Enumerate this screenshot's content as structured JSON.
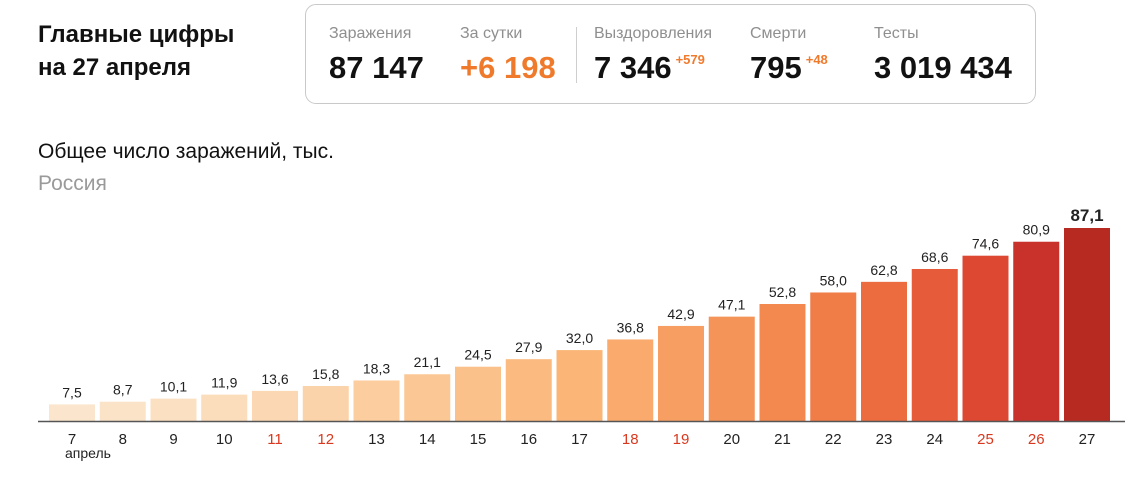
{
  "headline": {
    "line1": "Главные цифры",
    "line2": "на 27 апреля"
  },
  "stats": {
    "infections": {
      "label": "Заражения",
      "value": "87 147"
    },
    "daily": {
      "label": "За сутки",
      "value": "+6 198"
    },
    "recoveries": {
      "label": "Выздоровления",
      "value": "7 346",
      "delta": "+579"
    },
    "deaths": {
      "label": "Смерти",
      "value": "795",
      "delta": "+48"
    },
    "tests": {
      "label": "Тесты",
      "value": "3 019 434"
    }
  },
  "colors": {
    "accent": "#f07a2c",
    "holiday": "#d9381e"
  },
  "chart_data": {
    "type": "bar",
    "title": "Общее число заражений, тыс.",
    "subtitle": "Россия",
    "month_label": "апрель",
    "categories": [
      "7",
      "8",
      "9",
      "10",
      "11",
      "12",
      "13",
      "14",
      "15",
      "16",
      "17",
      "18",
      "19",
      "20",
      "21",
      "22",
      "23",
      "24",
      "25",
      "26",
      "27"
    ],
    "values": [
      7.5,
      8.7,
      10.1,
      11.9,
      13.6,
      15.8,
      18.3,
      21.1,
      24.5,
      27.9,
      32.0,
      36.8,
      42.9,
      47.1,
      52.8,
      58.0,
      62.8,
      68.6,
      74.6,
      80.9,
      87.1
    ],
    "value_labels": [
      "7,5",
      "8,7",
      "10,1",
      "11,9",
      "13,6",
      "15,8",
      "18,3",
      "21,1",
      "24,5",
      "27,9",
      "32,0",
      "36,8",
      "42,9",
      "47,1",
      "52,8",
      "58,0",
      "62,8",
      "68,6",
      "74,6",
      "80,9",
      "87,1"
    ],
    "weekend_categories": [
      "11",
      "12",
      "18",
      "19",
      "25",
      "26"
    ],
    "bar_colors": [
      "#fbe6cd",
      "#fbe3c8",
      "#fbe0c2",
      "#fbdcbb",
      "#fbd8b3",
      "#fbd3aa",
      "#fbcd9f",
      "#fbc794",
      "#fbc18a",
      "#fbbb80",
      "#fbb576",
      "#f9aa6c",
      "#f79f62",
      "#f59458",
      "#f3894f",
      "#f07c47",
      "#ec6c40",
      "#e65b39",
      "#dd4832",
      "#c8322a",
      "#b72a22"
    ],
    "ylim": [
      0,
      87.1
    ],
    "grid": false,
    "legend": "none"
  }
}
